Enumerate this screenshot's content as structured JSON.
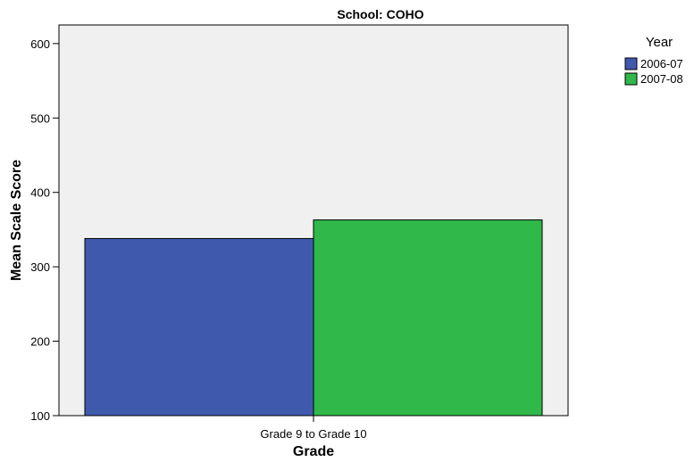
{
  "chart_data": {
    "type": "bar",
    "title": "School: COHO",
    "xlabel": "Grade",
    "ylabel": "Mean Scale Score",
    "categories": [
      "Grade 9 to Grade 10"
    ],
    "series": [
      {
        "name": "2006-07",
        "values": [
          338
        ],
        "color": "#3f5aad"
      },
      {
        "name": "2007-08",
        "values": [
          363
        ],
        "color": "#30b84a"
      }
    ],
    "ylim": [
      100,
      625
    ],
    "yticks": [
      100,
      200,
      300,
      400,
      500,
      600
    ],
    "legend": {
      "title": "Year",
      "position": "right"
    },
    "plot_background": "#f0f0f0",
    "grid": false
  }
}
